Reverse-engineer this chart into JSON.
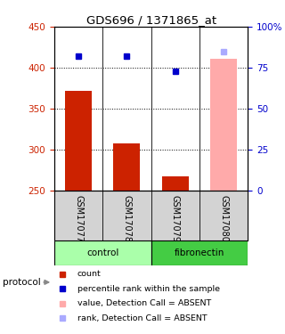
{
  "title": "GDS696 / 1371865_at",
  "samples": [
    "GSM17077",
    "GSM17078",
    "GSM17079",
    "GSM17080"
  ],
  "groups": [
    "control",
    "control",
    "fibronectin",
    "fibronectin"
  ],
  "bar_values": [
    372,
    308,
    268,
    411
  ],
  "bar_bottom": 250,
  "blue_dot_values": [
    82,
    82,
    73,
    85
  ],
  "absent_sample_idx": 3,
  "ylim_left": [
    250,
    450
  ],
  "ylim_right": [
    0,
    100
  ],
  "yticks_left": [
    250,
    300,
    350,
    400,
    450
  ],
  "yticks_right": [
    0,
    25,
    50,
    75,
    100
  ],
  "yticklabels_right": [
    "0",
    "25",
    "50",
    "75",
    "100%"
  ],
  "bar_color": "#cc2200",
  "bar_color_absent": "#ffaaaa",
  "dot_color": "#0000cc",
  "dot_color_absent": "#aaaaff",
  "group_colors": {
    "control": "#aaffaa",
    "fibronectin": "#44cc44"
  },
  "bg_color": "#ffffff",
  "label_color_left": "#cc2200",
  "label_color_right": "#0000cc",
  "legend_items": [
    {
      "label": "count",
      "color": "#cc2200"
    },
    {
      "label": "percentile rank within the sample",
      "color": "#0000cc"
    },
    {
      "label": "value, Detection Call = ABSENT",
      "color": "#ffaaaa"
    },
    {
      "label": "rank, Detection Call = ABSENT",
      "color": "#aaaaff"
    }
  ]
}
